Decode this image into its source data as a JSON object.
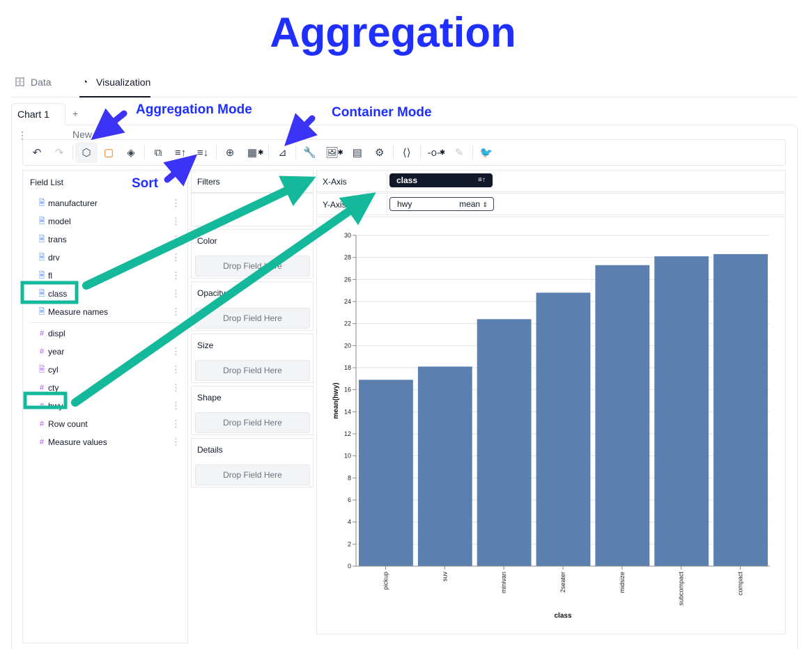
{
  "title": "Aggregation",
  "tabs": [
    {
      "label": "Data",
      "icon": "database-icon"
    },
    {
      "label": "Visualization",
      "icon": "pie-chart-icon"
    }
  ],
  "chart_tabs": {
    "active": "Chart 1",
    "menu_glyph": "⋮",
    "new_label": "+ New"
  },
  "annotations": {
    "aggregation_mode": "Aggregation Mode",
    "container_mode": "Container Mode",
    "sort": "Sort"
  },
  "field_list": {
    "title": "Field List",
    "dimensions": [
      "manufacturer",
      "model",
      "trans",
      "drv",
      "fl",
      "class",
      "Measure names"
    ],
    "measures": [
      "displ",
      "year",
      "cyl",
      "cty",
      "hwy",
      "Row count",
      "Measure values"
    ]
  },
  "encodings": {
    "filters_label": "Filters",
    "channels": [
      "Color",
      "Opacity",
      "Size",
      "Shape",
      "Details"
    ],
    "drop_placeholder": "Drop Field Here"
  },
  "axes": {
    "x_label": "X-Axis",
    "y_label": "Y-Axis",
    "x_field": "class",
    "y_field": "hwy",
    "y_aggregation": "mean"
  },
  "colors": {
    "bar": "#5b7fae",
    "accent": "#1f2fff",
    "highlight": "#14b89a"
  },
  "chart_data": {
    "type": "bar",
    "categories": [
      "pickup",
      "suv",
      "minivan",
      "2seater",
      "midsize",
      "subcompact",
      "compact"
    ],
    "values": [
      16.9,
      18.1,
      22.4,
      24.8,
      27.3,
      28.1,
      28.3
    ],
    "xlabel": "class",
    "ylabel": "mean(hwy)",
    "ylim": [
      0,
      30
    ],
    "yticks": [
      "0",
      "2",
      "4",
      "6",
      "8",
      "10",
      "12",
      "14",
      "16",
      "18",
      "20",
      "22",
      "24",
      "26",
      "28",
      "30"
    ],
    "grid": true
  }
}
